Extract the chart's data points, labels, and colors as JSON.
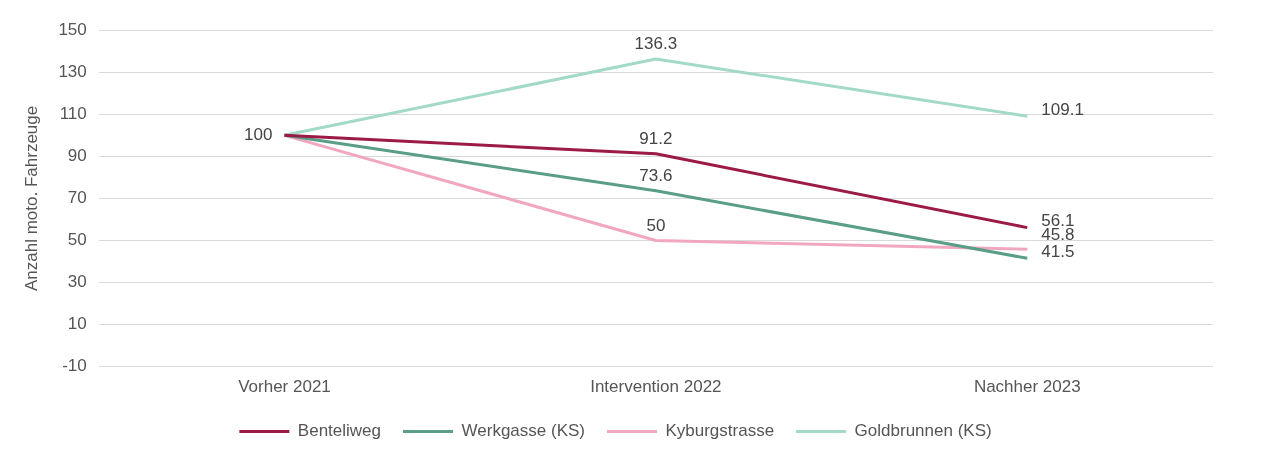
{
  "chart_data": {
    "type": "line",
    "ylabel": "Anzahl moto. Fahrzeuge",
    "categories": [
      "Vorher 2021",
      "Intervention 2022",
      "Nachher 2023"
    ],
    "series": [
      {
        "name": "Benteliweg",
        "color": "#9b1b46",
        "values": [
          100,
          91.2,
          56.1
        ],
        "value_labels": [
          "100",
          "91.2",
          "56.1"
        ]
      },
      {
        "name": "Werkgasse (KS)",
        "color": "#5a9e87",
        "values": [
          100,
          73.6,
          41.5
        ],
        "value_labels": [
          null,
          "73.6",
          "41.5"
        ]
      },
      {
        "name": "Kyburgstrasse",
        "color": "#f2a7c0",
        "values": [
          100,
          50,
          45.8
        ],
        "value_labels": [
          null,
          "50",
          "45.8"
        ]
      },
      {
        "name": "Goldbrunnen (KS)",
        "color": "#a3d9c8",
        "values": [
          100,
          136.3,
          109.1
        ],
        "value_labels": [
          null,
          "136.3",
          "109.1"
        ]
      }
    ],
    "ylim": [
      -10,
      150
    ],
    "yticks": [
      -10,
      10,
      30,
      50,
      70,
      90,
      110,
      130,
      150
    ],
    "grid": "y",
    "legend": "bottom",
    "marker": "none",
    "line_style": "solid"
  }
}
